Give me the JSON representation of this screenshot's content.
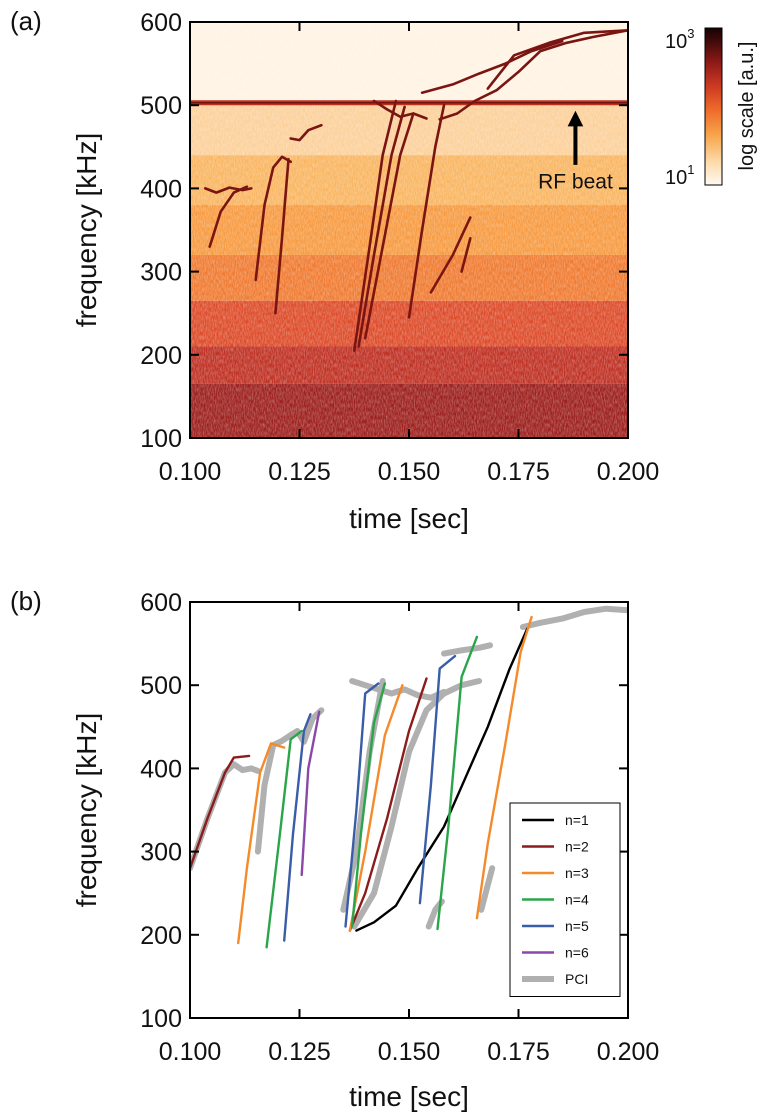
{
  "figure": {
    "panel_a_label": "(a)",
    "panel_b_label": "(b)"
  },
  "chart_data": [
    {
      "type": "heatmap",
      "panel": "(a)",
      "title": "",
      "xlabel": "time [sec]",
      "ylabel": "frequency [kHz]",
      "xlim": [
        0.1,
        0.2
      ],
      "ylim": [
        100,
        600
      ],
      "x_ticks": [
        0.1,
        0.125,
        0.15,
        0.175,
        0.2
      ],
      "x_tick_labels": [
        "0.100",
        "0.125",
        "0.150",
        "0.175",
        "0.200"
      ],
      "y_ticks": [
        100,
        200,
        300,
        400,
        500,
        600
      ],
      "y_tick_labels": [
        "100",
        "200",
        "300",
        "400",
        "500",
        "600"
      ],
      "colorbar": {
        "label": "log scale [a.u.]",
        "max_label_base": "10",
        "max_label_exp": "3",
        "min_label_base": "10",
        "min_label_exp": "1",
        "colors": [
          "#fffaf2",
          "#fdd9a8",
          "#f7a44a",
          "#ee6a2b",
          "#cc3a22",
          "#8e1a17",
          "#4a0c0b",
          "#150303"
        ]
      },
      "background_bands": [
        {
          "from": 100,
          "to": 165,
          "color": "#9c1e1b"
        },
        {
          "from": 165,
          "to": 210,
          "color": "#bf2f22"
        },
        {
          "from": 210,
          "to": 265,
          "color": "#dd4a28"
        },
        {
          "from": 265,
          "to": 320,
          "color": "#f07a30"
        },
        {
          "from": 320,
          "to": 380,
          "color": "#f79a40"
        },
        {
          "from": 380,
          "to": 440,
          "color": "#f9b560"
        },
        {
          "from": 440,
          "to": 505,
          "color": "#fcd09a"
        },
        {
          "from": 505,
          "to": 600,
          "color": "#fff3e3"
        }
      ],
      "rf_beat": {
        "frequency": 503,
        "label": "RF beat",
        "label_time": 0.188,
        "label_freq": 400,
        "arrow_tip_freq": 492
      },
      "traces": [
        {
          "x": [
            0.1035,
            0.106,
            0.109,
            0.112,
            0.114
          ],
          "y": [
            400,
            395,
            401,
            398,
            400
          ]
        },
        {
          "x": [
            0.1045,
            0.107,
            0.11,
            0.113
          ],
          "y": [
            330,
            372,
            395,
            402
          ]
        },
        {
          "x": [
            0.115,
            0.117,
            0.119,
            0.121,
            0.123
          ],
          "y": [
            290,
            380,
            425,
            438,
            432
          ]
        },
        {
          "x": [
            0.1195,
            0.121,
            0.1225
          ],
          "y": [
            250,
            340,
            435
          ]
        },
        {
          "x": [
            0.123,
            0.125,
            0.127,
            0.13
          ],
          "y": [
            460,
            458,
            470,
            476
          ]
        },
        {
          "x": [
            0.1375,
            0.141,
            0.144,
            0.147
          ],
          "y": [
            205,
            330,
            440,
            505
          ]
        },
        {
          "x": [
            0.1385,
            0.142,
            0.146,
            0.149
          ],
          "y": [
            210,
            320,
            440,
            498
          ]
        },
        {
          "x": [
            0.14,
            0.144,
            0.148,
            0.151
          ],
          "y": [
            220,
            330,
            440,
            490
          ]
        },
        {
          "x": [
            0.142,
            0.145,
            0.148,
            0.151,
            0.154
          ],
          "y": [
            505,
            495,
            486,
            490,
            484
          ]
        },
        {
          "x": [
            0.15,
            0.153,
            0.156,
            0.158
          ],
          "y": [
            245,
            350,
            450,
            500
          ]
        },
        {
          "x": [
            0.157,
            0.161,
            0.165,
            0.17,
            0.175,
            0.18,
            0.186,
            0.192,
            0.2
          ],
          "y": [
            483,
            490,
            505,
            518,
            540,
            565,
            575,
            582,
            590
          ]
        },
        {
          "x": [
            0.153,
            0.16,
            0.166,
            0.172,
            0.178,
            0.185
          ],
          "y": [
            515,
            525,
            538,
            550,
            565,
            577
          ]
        },
        {
          "x": [
            0.155,
            0.16,
            0.164
          ],
          "y": [
            275,
            320,
            365
          ]
        },
        {
          "x": [
            0.162,
            0.164
          ],
          "y": [
            300,
            340
          ]
        },
        {
          "x": [
            0.168,
            0.174,
            0.182,
            0.19,
            0.2
          ],
          "y": [
            520,
            560,
            575,
            587,
            590
          ]
        }
      ]
    },
    {
      "type": "line",
      "panel": "(b)",
      "title": "",
      "xlabel": "time [sec]",
      "ylabel": "frequency [kHz]",
      "xlim": [
        0.1,
        0.2
      ],
      "ylim": [
        100,
        600
      ],
      "x_ticks": [
        0.1,
        0.125,
        0.15,
        0.175,
        0.2
      ],
      "x_tick_labels": [
        "0.100",
        "0.125",
        "0.150",
        "0.175",
        "0.200"
      ],
      "y_ticks": [
        100,
        200,
        300,
        400,
        500,
        600
      ],
      "y_tick_labels": [
        "100",
        "200",
        "300",
        "400",
        "500",
        "600"
      ],
      "legend": {
        "placement": "lower-right"
      },
      "series": [
        {
          "name": "n=1",
          "color": "#000000",
          "segments": [
            {
              "x": [
                0.138,
                0.142,
                0.147,
                0.152,
                0.158,
                0.163,
                0.168,
                0.173,
                0.177
              ],
              "y": [
                205,
                215,
                235,
                280,
                330,
                390,
                450,
                520,
                568
              ]
            }
          ]
        },
        {
          "name": "n=2",
          "color": "#8b1c1c",
          "segments": [
            {
              "x": [
                0.1,
                0.104,
                0.108,
                0.11,
                0.1135
              ],
              "y": [
                280,
                340,
                395,
                413,
                415
              ]
            },
            {
              "x": [
                0.1365,
                0.14,
                0.145,
                0.15,
                0.154
              ],
              "y": [
                205,
                250,
                340,
                445,
                508
              ]
            }
          ]
        },
        {
          "name": "n=3",
          "color": "#f58a2a",
          "segments": [
            {
              "x": [
                0.111,
                0.113,
                0.116,
                0.1185,
                0.1215
              ],
              "y": [
                190,
                280,
                395,
                430,
                425
              ]
            },
            {
              "x": [
                0.1365,
                0.14,
                0.1445,
                0.1485
              ],
              "y": [
                205,
                300,
                440,
                500
              ]
            },
            {
              "x": [
                0.1655,
                0.168,
                0.172,
                0.1755,
                0.178
              ],
              "y": [
                220,
                310,
                430,
                540,
                582
              ]
            }
          ]
        },
        {
          "name": "n=4",
          "color": "#2aa54a",
          "segments": [
            {
              "x": [
                0.1175,
                0.1205,
                0.123,
                0.1255
              ],
              "y": [
                185,
                320,
                435,
                445
              ]
            },
            {
              "x": [
                0.137,
                0.139,
                0.142,
                0.1445
              ],
              "y": [
                210,
                320,
                455,
                502
              ]
            },
            {
              "x": [
                0.1565,
                0.159,
                0.162,
                0.1655
              ],
              "y": [
                207,
                330,
                510,
                558
              ]
            }
          ]
        },
        {
          "name": "n=5",
          "color": "#3a5da8",
          "segments": [
            {
              "x": [
                0.1215,
                0.1235,
                0.126,
                0.1275
              ],
              "y": [
                193,
                320,
                445,
                465
              ]
            },
            {
              "x": [
                0.1355,
                0.138,
                0.14,
                0.143
              ],
              "y": [
                210,
                350,
                490,
                502
              ]
            },
            {
              "x": [
                0.1525,
                0.155,
                0.157,
                0.1605
              ],
              "y": [
                238,
                380,
                520,
                535
              ]
            }
          ]
        },
        {
          "name": "n=6",
          "color": "#8a48a8",
          "segments": [
            {
              "x": [
                0.1255,
                0.127,
                0.1295
              ],
              "y": [
                272,
                400,
                468
              ]
            }
          ]
        },
        {
          "name": "PCI",
          "color": "#b0b0b0",
          "segments": [
            {
              "x": [
                0.1,
                0.104,
                0.108,
                0.11,
                0.112,
                0.114,
                0.1155
              ],
              "y": [
                280,
                340,
                395,
                405,
                398,
                400,
                397
              ]
            },
            {
              "x": [
                0.1155,
                0.117,
                0.119,
                0.121,
                0.123,
                0.1245,
                0.126,
                0.128,
                0.13
              ],
              "y": [
                300,
                380,
                428,
                433,
                440,
                445,
                432,
                460,
                470
              ]
            },
            {
              "x": [
                0.135,
                0.138,
                0.141,
                0.144
              ],
              "y": [
                230,
                300,
                420,
                505
              ]
            },
            {
              "x": [
                0.1375,
                0.142,
                0.146,
                0.15,
                0.154,
                0.158,
                0.162,
                0.166
              ],
              "y": [
                210,
                250,
                330,
                420,
                470,
                490,
                500,
                505
              ]
            },
            {
              "x": [
                0.137,
                0.14,
                0.143,
                0.146,
                0.149,
                0.152,
                0.155,
                0.158
              ],
              "y": [
                505,
                500,
                495,
                490,
                495,
                488,
                485,
                492
              ]
            },
            {
              "x": [
                0.158,
                0.162,
                0.166,
                0.1685
              ],
              "y": [
                538,
                542,
                545,
                548
              ]
            },
            {
              "x": [
                0.1545,
                0.156,
                0.1575
              ],
              "y": [
                210,
                230,
                240
              ]
            },
            {
              "x": [
                0.1665,
                0.168,
                0.169
              ],
              "y": [
                230,
                260,
                280
              ]
            },
            {
              "x": [
                0.176,
                0.18,
                0.185,
                0.19,
                0.195,
                0.2
              ],
              "y": [
                570,
                575,
                580,
                588,
                592,
                590
              ]
            }
          ]
        }
      ]
    }
  ]
}
